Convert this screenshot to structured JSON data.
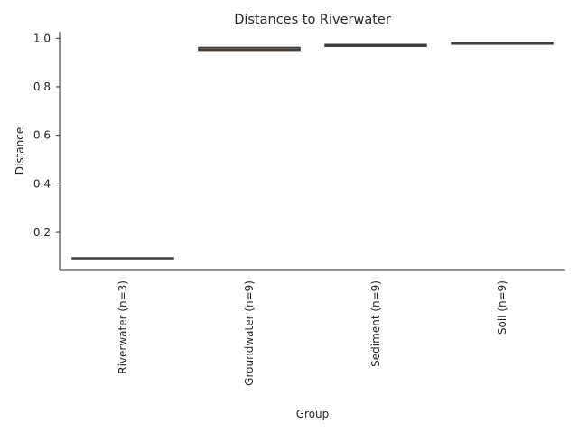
{
  "chart_data": {
    "type": "box",
    "title": "Distances to Riverwater",
    "xlabel": "Group",
    "ylabel": "Distance",
    "ylim": [
      0.044,
      1.027
    ],
    "yticks": [
      0.2,
      0.4,
      0.6,
      0.8,
      1.0
    ],
    "ytick_labels": [
      "0.2",
      "0.4",
      "0.6",
      "0.8",
      "1.0"
    ],
    "grid": false,
    "categories": [
      "Riverwater (n=3)",
      "Groundwater (n=9)",
      "Sediment (n=9)",
      "Soil (n=9)"
    ],
    "boxes": [
      {
        "category": "Riverwater (n=3)",
        "whisker_low": 0.092,
        "q1": 0.092,
        "median": 0.093,
        "q3": 0.096,
        "whisker_high": 0.097,
        "color": "#4c72b0"
      },
      {
        "category": "Groundwater (n=9)",
        "whisker_low": 0.948,
        "q1": 0.95,
        "median": 0.955,
        "q3": 0.962,
        "whisker_high": 0.963,
        "color": "#dd8452"
      },
      {
        "category": "Sediment (n=9)",
        "whisker_low": 0.966,
        "q1": 0.968,
        "median": 0.971,
        "q3": 0.974,
        "whisker_high": 0.976,
        "color": "#55a868"
      },
      {
        "category": "Soil (n=9)",
        "whisker_low": 0.974,
        "q1": 0.976,
        "median": 0.979,
        "q3": 0.983,
        "whisker_high": 0.985,
        "color": "#c44e52"
      }
    ]
  }
}
